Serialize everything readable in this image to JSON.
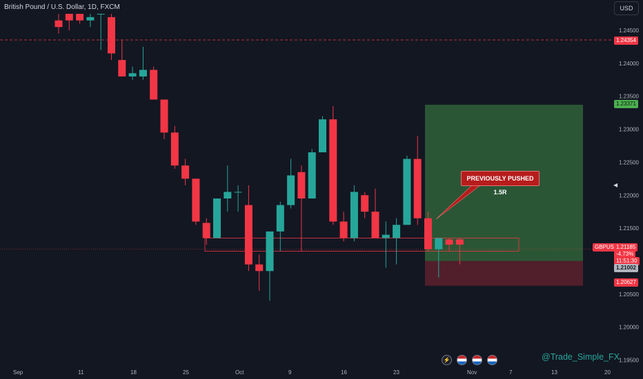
{
  "title": "British Pound / U.S. Dollar, 1D, FXCM",
  "currency_button": "USD",
  "symbol": "GBPUSD",
  "annotation": "PREVIOUSLY PUSHED 1.5R",
  "watermark": "@Trade_Simple_FX",
  "price_tags": {
    "top_dashed": "1.24354",
    "target": "1.23371",
    "current": "1.21185",
    "change": "-4.73%",
    "countdown": "11:51:30",
    "entry": "1.21002",
    "stop": "1.20627"
  },
  "icons": [
    "lightning-icon",
    "us-flag-icon",
    "us-flag-icon",
    "us-flag-icon"
  ],
  "colors": {
    "bull": "#26a69a",
    "bear": "#f23645",
    "background": "#131722"
  },
  "chart_data": {
    "type": "candlestick",
    "ylim": [
      1.193,
      1.2475
    ],
    "y_ticks": [
      1.245,
      1.24,
      1.235,
      1.23,
      1.225,
      1.22,
      1.215,
      1.205,
      1.2,
      1.195
    ],
    "x_ticks": [
      "Sep",
      "11",
      "18",
      "25",
      "Oct",
      "9",
      "16",
      "23",
      "Nov",
      "7",
      "13",
      "20"
    ],
    "grid": false,
    "candles": [
      {
        "open": 1.2465,
        "high": 1.2475,
        "low": 1.2445,
        "close": 1.2455
      },
      {
        "open": 1.2475,
        "high": 1.2475,
        "low": 1.245,
        "close": 1.2465
      },
      {
        "open": 1.2475,
        "high": 1.2475,
        "low": 1.246,
        "close": 1.2465
      },
      {
        "open": 1.2465,
        "high": 1.2475,
        "low": 1.2455,
        "close": 1.247
      },
      {
        "open": 1.2475,
        "high": 1.2475,
        "low": 1.242,
        "close": 1.2475
      },
      {
        "open": 1.247,
        "high": 1.2475,
        "low": 1.2405,
        "close": 1.2415
      },
      {
        "open": 1.2405,
        "high": 1.2435,
        "low": 1.238,
        "close": 1.238
      },
      {
        "open": 1.238,
        "high": 1.2395,
        "low": 1.2375,
        "close": 1.2385
      },
      {
        "open": 1.238,
        "high": 1.2425,
        "low": 1.2375,
        "close": 1.239
      },
      {
        "open": 1.239,
        "high": 1.2395,
        "low": 1.2345,
        "close": 1.2345
      },
      {
        "open": 1.2345,
        "high": 1.2345,
        "low": 1.2285,
        "close": 1.2295
      },
      {
        "open": 1.2295,
        "high": 1.2305,
        "low": 1.224,
        "close": 1.2245
      },
      {
        "open": 1.2245,
        "high": 1.2255,
        "low": 1.2215,
        "close": 1.2225
      },
      {
        "open": 1.2225,
        "high": 1.222,
        "low": 1.2155,
        "close": 1.216
      },
      {
        "open": 1.2158,
        "high": 1.2165,
        "low": 1.2125,
        "close": 1.2135
      },
      {
        "open": 1.2135,
        "high": 1.2195,
        "low": 1.2135,
        "close": 1.2195
      },
      {
        "open": 1.2195,
        "high": 1.2245,
        "low": 1.2175,
        "close": 1.2205
      },
      {
        "open": 1.2205,
        "high": 1.2215,
        "low": 1.2175,
        "close": 1.2205
      },
      {
        "open": 1.2185,
        "high": 1.2215,
        "low": 1.2085,
        "close": 1.2095
      },
      {
        "open": 1.2095,
        "high": 1.211,
        "low": 1.2055,
        "close": 1.2085
      },
      {
        "open": 1.2085,
        "high": 1.2145,
        "low": 1.204,
        "close": 1.2145
      },
      {
        "open": 1.2145,
        "high": 1.219,
        "low": 1.2115,
        "close": 1.2185
      },
      {
        "open": 1.2185,
        "high": 1.2255,
        "low": 1.218,
        "close": 1.223
      },
      {
        "open": 1.2235,
        "high": 1.2245,
        "low": 1.2115,
        "close": 1.2195
      },
      {
        "open": 1.2195,
        "high": 1.227,
        "low": 1.2195,
        "close": 1.2265
      },
      {
        "open": 1.2265,
        "high": 1.232,
        "low": 1.2265,
        "close": 1.2315
      },
      {
        "open": 1.2315,
        "high": 1.2335,
        "low": 1.2155,
        "close": 1.216
      },
      {
        "open": 1.216,
        "high": 1.2175,
        "low": 1.213,
        "close": 1.2135
      },
      {
        "open": 1.2135,
        "high": 1.2215,
        "low": 1.213,
        "close": 1.2205
      },
      {
        "open": 1.22,
        "high": 1.2205,
        "low": 1.2165,
        "close": 1.2175
      },
      {
        "open": 1.2175,
        "high": 1.221,
        "low": 1.2135,
        "close": 1.2135
      },
      {
        "open": 1.2135,
        "high": 1.216,
        "low": 1.209,
        "close": 1.214
      },
      {
        "open": 1.2135,
        "high": 1.2165,
        "low": 1.2095,
        "close": 1.2155
      },
      {
        "open": 1.2155,
        "high": 1.226,
        "low": 1.2155,
        "close": 1.2255
      },
      {
        "open": 1.2255,
        "high": 1.229,
        "low": 1.2155,
        "close": 1.2165
      },
      {
        "open": 1.2165,
        "high": 1.2175,
        "low": 1.2115,
        "close": 1.2118
      },
      {
        "open": 1.2118,
        "high": 1.2135,
        "low": 1.2075,
        "close": 1.2135
      },
      {
        "open": 1.2133,
        "high": 1.2135,
        "low": 1.2115,
        "close": 1.2125
      },
      {
        "open": 1.2133,
        "high": 1.2135,
        "low": 1.2095,
        "close": 1.2125
      }
    ],
    "position": {
      "target": 1.23371,
      "entry": 1.21002,
      "stop": 1.20627
    },
    "zone": {
      "top": 1.2135,
      "bottom": 1.2115
    },
    "lines": {
      "resistance_dashed": 1.24354,
      "current": 1.21185
    }
  }
}
